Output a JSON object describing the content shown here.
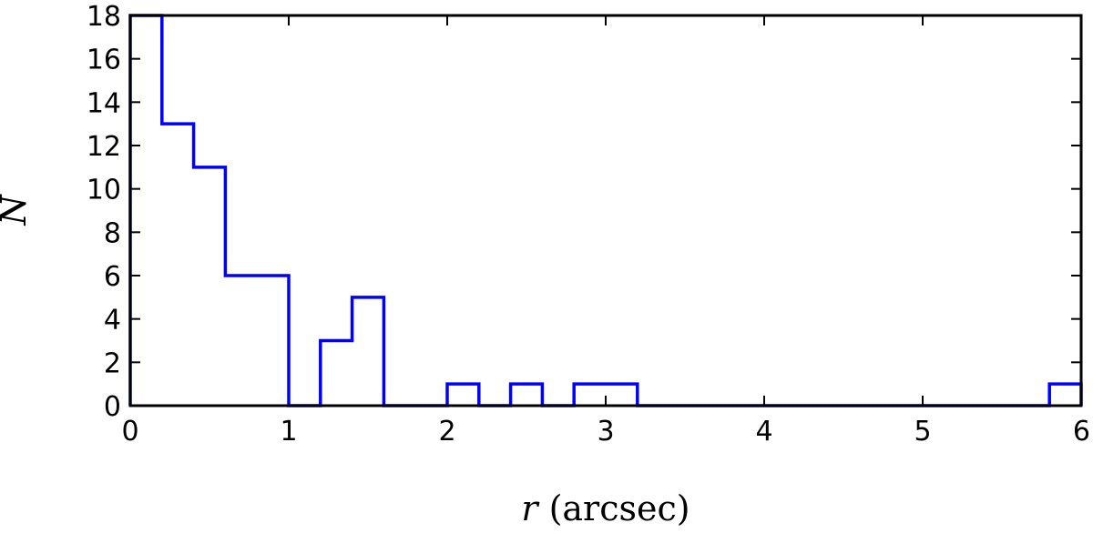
{
  "chart_data": {
    "type": "histogram",
    "bin_edges": [
      0,
      0.2,
      0.4,
      0.6,
      0.8,
      1.0,
      1.2,
      1.4,
      1.6,
      1.8,
      2.0,
      2.2,
      2.4,
      2.6,
      2.8,
      3.0,
      3.2,
      3.4,
      3.6,
      3.8,
      4.0,
      4.2,
      4.4,
      4.6,
      4.8,
      5.0,
      5.2,
      5.4,
      5.6,
      5.8,
      6.0
    ],
    "counts": [
      18,
      13,
      11,
      6,
      6,
      0,
      3,
      5,
      0,
      0,
      1,
      0,
      1,
      0,
      1,
      1,
      0,
      0,
      0,
      0,
      0,
      0,
      0,
      0,
      0,
      0,
      0,
      0,
      0,
      1
    ],
    "xlim": [
      0,
      6
    ],
    "ylim": [
      0,
      18
    ],
    "xticks": [
      "0",
      "1",
      "2",
      "3",
      "4",
      "5",
      "6"
    ],
    "yticks": [
      "0",
      "2",
      "4",
      "6",
      "8",
      "10",
      "12",
      "14",
      "16",
      "18"
    ],
    "xlabel_var": "r",
    "xlabel_unit": "(arcsec)",
    "ylabel": "N",
    "line_color": "#0000ff",
    "grid": false
  }
}
